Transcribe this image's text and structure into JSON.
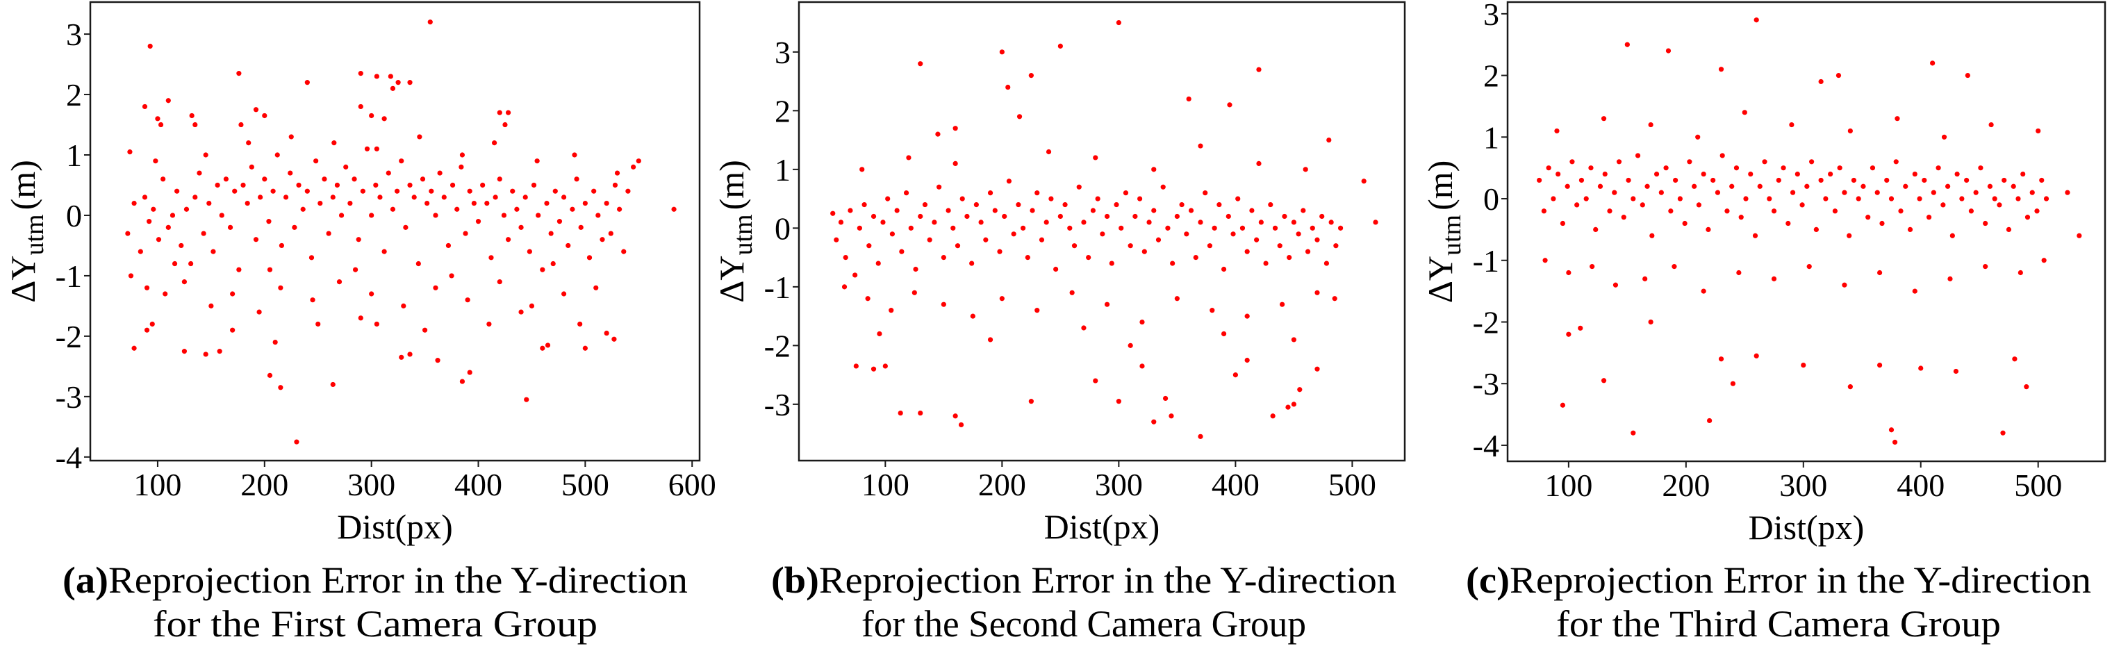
{
  "point_color": "#ff0000",
  "chart_data": [
    {
      "type": "scatter",
      "caption_tag": "(a)",
      "caption_line1": "Reprojection Error in the Y-direction",
      "caption_line2": "for the First Camera Group",
      "xlabel": "Dist(px)",
      "ylabel_main": "ΔY",
      "ylabel_sub": "utm",
      "ylabel_unit": "(m)",
      "xlim": [
        37,
        607
      ],
      "ylim": [
        -4.06,
        3.53
      ],
      "xticks": [
        100,
        200,
        300,
        400,
        500,
        600
      ],
      "yticks": [
        3,
        2,
        1,
        0,
        -1,
        -2,
        -3,
        -4
      ],
      "grid": false,
      "x": [
        72,
        78,
        84,
        88,
        92,
        96,
        101,
        105,
        110,
        114,
        118,
        122,
        127,
        131,
        135,
        139,
        143,
        148,
        152,
        156,
        160,
        164,
        168,
        172,
        176,
        180,
        184,
        188,
        192,
        196,
        200,
        204,
        208,
        212,
        216,
        220,
        224,
        228,
        232,
        236,
        240,
        244,
        248,
        252,
        256,
        260,
        264,
        268,
        272,
        276,
        280,
        284,
        288,
        292,
        296,
        300,
        304,
        308,
        312,
        316,
        320,
        324,
        328,
        332,
        336,
        340,
        344,
        348,
        352,
        356,
        360,
        364,
        368,
        372,
        376,
        380,
        384,
        388,
        392,
        396,
        400,
        404,
        408,
        412,
        416,
        420,
        424,
        428,
        432,
        436,
        440,
        444,
        448,
        452,
        456,
        460,
        464,
        468,
        472,
        476,
        480,
        484,
        488,
        492,
        496,
        500,
        504,
        508,
        512,
        516,
        520,
        524,
        528,
        532,
        536,
        540,
        545,
        75,
        90,
        107,
        125,
        150,
        170,
        195,
        215,
        245,
        270,
        300,
        330,
        360,
        390,
        420,
        450,
        480,
        510,
        98,
        145,
        185,
        225,
        265,
        305,
        345,
        385,
        415,
        455,
        490,
        530,
        116,
        205,
        285,
        375,
        470,
        550,
        93,
        176,
        240,
        290,
        305,
        318,
        325,
        336,
        355,
        88,
        110,
        100,
        103,
        132,
        135,
        178,
        192,
        200,
        290,
        300,
        312,
        320,
        420,
        428,
        425,
        74,
        583,
        78,
        90,
        95,
        125,
        145,
        158,
        205,
        215,
        230,
        264,
        328,
        336,
        362,
        385,
        392,
        445,
        460,
        465,
        500,
        520,
        527,
        495,
        170,
        210,
        250,
        290,
        305,
        350,
        410,
        440
      ],
      "y": [
        -0.3,
        0.2,
        -0.6,
        0.3,
        -0.1,
        0.1,
        -0.4,
        0.6,
        -0.2,
        0.0,
        0.4,
        -0.5,
        0.1,
        -0.8,
        0.3,
        0.7,
        -0.3,
        0.2,
        -0.6,
        0.5,
        0.0,
        0.6,
        -0.2,
        0.4,
        -0.9,
        0.5,
        0.2,
        0.8,
        -0.4,
        0.3,
        0.6,
        -0.1,
        0.4,
        1.0,
        -0.5,
        0.3,
        0.7,
        -0.2,
        0.5,
        0.1,
        0.4,
        -0.7,
        0.9,
        0.2,
        0.6,
        -0.3,
        0.3,
        0.5,
        0.0,
        0.8,
        0.2,
        0.6,
        -0.4,
        0.4,
        1.1,
        0.0,
        0.5,
        0.3,
        -0.6,
        0.7,
        0.1,
        0.4,
        0.9,
        -0.2,
        0.5,
        0.3,
        -0.8,
        0.6,
        0.2,
        0.4,
        0.0,
        0.7,
        0.3,
        -0.5,
        0.5,
        0.1,
        0.8,
        -0.3,
        0.4,
        0.2,
        -0.1,
        0.5,
        0.2,
        -0.7,
        0.3,
        0.6,
        0.0,
        -0.4,
        0.4,
        0.1,
        -0.2,
        0.3,
        -0.6,
        0.5,
        0.0,
        -0.9,
        0.2,
        -0.3,
        0.4,
        -0.1,
        0.3,
        -0.5,
        0.1,
        0.6,
        -0.2,
        0.2,
        -0.7,
        0.4,
        0.0,
        -0.4,
        0.2,
        -0.3,
        0.5,
        0.1,
        -0.6,
        0.4,
        0.8,
        -1.0,
        -1.2,
        -1.3,
        -1.1,
        -1.5,
        -1.3,
        -1.6,
        -1.2,
        -1.4,
        -1.1,
        -1.3,
        -1.5,
        -1.2,
        -1.4,
        -1.1,
        -1.5,
        -1.3,
        -1.2,
        0.9,
        1.0,
        1.2,
        1.3,
        1.2,
        1.1,
        1.3,
        1.0,
        1.2,
        0.9,
        1.0,
        0.7,
        -0.8,
        -0.9,
        -0.9,
        -1.0,
        -0.8,
        0.9,
        2.8,
        2.35,
        2.2,
        2.35,
        2.3,
        2.3,
        2.2,
        2.2,
        3.2,
        1.8,
        1.9,
        1.6,
        1.5,
        1.65,
        1.5,
        1.5,
        1.75,
        1.65,
        1.8,
        1.65,
        1.6,
        2.1,
        1.7,
        1.7,
        1.5,
        1.05,
        0.1,
        -2.2,
        -1.9,
        -1.8,
        -2.25,
        -2.3,
        -2.25,
        -2.65,
        -2.85,
        -3.75,
        -2.8,
        -2.35,
        -2.3,
        -2.4,
        -2.75,
        -2.6,
        -3.05,
        -2.2,
        -2.15,
        -2.2,
        -1.95,
        -2.05,
        -1.8,
        -1.9,
        -2.1,
        -1.8,
        -1.7,
        -1.8,
        -1.9,
        -1.8,
        -1.6
      ]
    },
    {
      "type": "scatter",
      "caption_tag": "(b)",
      "caption_line1": "Reprojection Error in the Y-direction",
      "caption_line2": "for the Second Camera Group",
      "xlabel": "Dist(px)",
      "ylabel_main": "ΔY",
      "ylabel_sub": "utm",
      "ylabel_unit": "(m)",
      "xlim": [
        26,
        545
      ],
      "ylim": [
        -3.96,
        3.85
      ],
      "xticks": [
        100,
        200,
        300,
        400,
        500
      ],
      "yticks": [
        3,
        2,
        1,
        0,
        -1,
        -2,
        -3
      ],
      "grid": false,
      "x": [
        58,
        62,
        66,
        70,
        74,
        78,
        82,
        86,
        90,
        94,
        98,
        102,
        106,
        110,
        114,
        118,
        122,
        126,
        130,
        134,
        138,
        142,
        146,
        150,
        154,
        158,
        162,
        166,
        170,
        174,
        178,
        182,
        186,
        190,
        194,
        198,
        202,
        206,
        210,
        214,
        218,
        222,
        226,
        230,
        234,
        238,
        242,
        246,
        250,
        254,
        258,
        262,
        266,
        270,
        274,
        278,
        282,
        286,
        290,
        294,
        298,
        302,
        306,
        310,
        314,
        318,
        322,
        326,
        330,
        334,
        338,
        342,
        346,
        350,
        354,
        358,
        362,
        366,
        370,
        374,
        378,
        382,
        386,
        390,
        394,
        398,
        402,
        406,
        410,
        414,
        418,
        422,
        426,
        430,
        434,
        438,
        442,
        446,
        450,
        454,
        458,
        462,
        466,
        470,
        474,
        478,
        482,
        486,
        490,
        65,
        85,
        105,
        125,
        150,
        175,
        200,
        230,
        260,
        290,
        320,
        350,
        380,
        410,
        440,
        470,
        485,
        80,
        120,
        160,
        240,
        280,
        330,
        370,
        420,
        460,
        95,
        190,
        270,
        310,
        390,
        450,
        130,
        200,
        250,
        300,
        225,
        205,
        215,
        420,
        360,
        395,
        113,
        130,
        160,
        165,
        225,
        280,
        300,
        320,
        330,
        340,
        345,
        370,
        400,
        410,
        432,
        445,
        450,
        455,
        470,
        75,
        90,
        100,
        520,
        510,
        55,
        145,
        160,
        480
      ],
      "y": [
        -0.2,
        0.1,
        -0.5,
        0.3,
        -0.8,
        0.0,
        0.4,
        -0.3,
        0.2,
        -0.6,
        0.1,
        0.5,
        -0.1,
        0.3,
        -0.4,
        0.6,
        0.0,
        -0.7,
        0.2,
        0.4,
        -0.2,
        0.1,
        0.7,
        -0.5,
        0.3,
        0.0,
        -0.3,
        0.5,
        0.2,
        -0.6,
        0.4,
        0.1,
        -0.2,
        0.6,
        0.3,
        -0.4,
        0.2,
        0.8,
        -0.1,
        0.4,
        0.0,
        -0.5,
        0.3,
        0.6,
        -0.2,
        0.1,
        0.5,
        -0.7,
        0.2,
        0.4,
        0.0,
        -0.3,
        0.7,
        0.1,
        -0.5,
        0.3,
        0.5,
        -0.1,
        0.2,
        -0.6,
        0.4,
        0.0,
        0.6,
        -0.3,
        0.2,
        0.5,
        -0.4,
        0.1,
        0.3,
        -0.2,
        0.7,
        0.0,
        -0.6,
        0.2,
        0.4,
        -0.1,
        0.3,
        -0.5,
        0.1,
        0.6,
        -0.3,
        0.0,
        0.4,
        -0.7,
        0.2,
        -0.1,
        0.5,
        0.0,
        -0.4,
        0.3,
        -0.2,
        0.1,
        -0.6,
        0.4,
        0.0,
        -0.3,
        0.2,
        -0.5,
        0.1,
        -0.1,
        0.3,
        -0.4,
        0.0,
        -0.2,
        0.2,
        -0.6,
        0.1,
        -0.3,
        0.0,
        -1.0,
        -1.2,
        -1.4,
        -1.1,
        -1.3,
        -1.5,
        -1.2,
        -1.4,
        -1.1,
        -1.3,
        -1.6,
        -1.2,
        -1.4,
        -1.5,
        -1.3,
        -1.1,
        -1.2,
        1.0,
        1.2,
        1.1,
        1.3,
        1.2,
        1.0,
        1.4,
        1.1,
        1.0,
        -1.8,
        -1.9,
        -1.7,
        -2.0,
        -1.8,
        -1.9,
        2.8,
        3.0,
        3.1,
        3.5,
        2.6,
        2.4,
        1.9,
        2.7,
        2.2,
        2.1,
        -3.15,
        -3.15,
        -3.2,
        -3.35,
        -2.95,
        -2.6,
        -2.95,
        -2.35,
        -3.3,
        -2.9,
        -3.2,
        -3.55,
        -2.5,
        -2.25,
        -3.2,
        -3.05,
        -3.0,
        -2.75,
        -2.4,
        -2.35,
        -2.4,
        -2.35,
        0.1,
        0.8,
        0.25,
        1.6,
        1.7,
        1.5
      ]
    },
    {
      "type": "scatter",
      "caption_tag": "(c)",
      "caption_line1": "Reprojection Error in the Y-direction",
      "caption_line2": "for the Third Camera Group",
      "xlabel": "Dist(px)",
      "ylabel_main": "ΔY",
      "ylabel_sub": "utm",
      "ylabel_unit": "(m)",
      "xlim": [
        48,
        557
      ],
      "ylim": [
        -4.26,
        3.19
      ],
      "xticks": [
        100,
        200,
        300,
        400,
        500
      ],
      "yticks": [
        3,
        2,
        1,
        0,
        -1,
        -2,
        -3,
        -4
      ],
      "grid": false,
      "x": [
        75,
        79,
        83,
        87,
        91,
        95,
        99,
        103,
        107,
        111,
        115,
        119,
        123,
        127,
        131,
        135,
        139,
        143,
        147,
        151,
        155,
        159,
        163,
        167,
        171,
        175,
        179,
        183,
        187,
        191,
        195,
        199,
        203,
        207,
        211,
        215,
        219,
        223,
        227,
        231,
        235,
        239,
        243,
        247,
        251,
        255,
        259,
        263,
        267,
        271,
        275,
        279,
        283,
        287,
        291,
        295,
        299,
        303,
        307,
        311,
        315,
        319,
        323,
        327,
        331,
        335,
        339,
        343,
        347,
        351,
        355,
        359,
        363,
        367,
        371,
        375,
        379,
        383,
        387,
        391,
        395,
        399,
        403,
        407,
        411,
        415,
        419,
        423,
        427,
        431,
        435,
        439,
        443,
        447,
        451,
        455,
        459,
        463,
        467,
        471,
        475,
        479,
        483,
        487,
        491,
        495,
        499,
        503,
        507,
        80,
        100,
        120,
        140,
        165,
        190,
        215,
        245,
        275,
        305,
        335,
        365,
        395,
        425,
        455,
        485,
        505,
        90,
        130,
        170,
        210,
        250,
        290,
        340,
        380,
        420,
        460,
        500,
        260,
        150,
        185,
        95,
        155,
        220,
        230,
        300,
        240,
        375,
        378,
        470,
        490,
        430,
        340,
        130,
        110,
        170,
        230,
        330,
        410,
        440,
        315,
        535,
        525,
        260,
        400,
        365,
        480,
        100
      ],
      "y": [
        0.3,
        -0.2,
        0.5,
        0.0,
        0.4,
        -0.4,
        0.2,
        0.6,
        -0.1,
        0.3,
        0.0,
        0.5,
        -0.5,
        0.2,
        0.4,
        -0.2,
        0.1,
        0.6,
        -0.3,
        0.3,
        0.0,
        0.7,
        -0.1,
        0.2,
        -0.6,
        0.4,
        0.1,
        0.5,
        -0.2,
        0.3,
        0.0,
        -0.4,
        0.6,
        0.2,
        -0.1,
        0.4,
        -0.5,
        0.3,
        0.1,
        0.7,
        -0.2,
        0.2,
        0.5,
        -0.3,
        0.0,
        0.4,
        -0.6,
        0.2,
        0.6,
        0.0,
        -0.2,
        0.3,
        0.5,
        -0.4,
        0.1,
        0.4,
        -0.1,
        0.2,
        0.6,
        -0.5,
        0.3,
        0.0,
        0.4,
        -0.2,
        0.5,
        0.1,
        -0.6,
        0.3,
        0.0,
        0.2,
        -0.3,
        0.5,
        0.1,
        -0.4,
        0.3,
        0.0,
        0.6,
        -0.2,
        0.2,
        -0.5,
        0.4,
        0.0,
        0.3,
        -0.3,
        0.1,
        0.5,
        -0.1,
        0.2,
        -0.6,
        0.4,
        0.0,
        0.3,
        -0.2,
        0.1,
        0.5,
        -0.4,
        0.2,
        0.0,
        -0.1,
        0.3,
        -0.5,
        0.2,
        0.0,
        0.4,
        -0.3,
        0.1,
        -0.2,
        0.3,
        0.0,
        -1.0,
        -1.2,
        -1.1,
        -1.4,
        -1.3,
        -1.1,
        -1.5,
        -1.2,
        -1.3,
        -1.1,
        -1.4,
        -1.2,
        -1.5,
        -1.3,
        -1.1,
        -1.2,
        -1.0,
        1.1,
        1.3,
        1.2,
        1.0,
        1.4,
        1.2,
        1.1,
        1.3,
        1.0,
        1.2,
        1.1,
        2.9,
        2.5,
        2.4,
        -3.35,
        -3.8,
        -3.6,
        -2.6,
        -2.7,
        -3.0,
        -3.75,
        -3.95,
        -3.8,
        -3.05,
        -2.8,
        -3.05,
        -2.95,
        -2.1,
        -2.0,
        2.1,
        2.0,
        2.2,
        2.0,
        1.9,
        -0.6,
        0.1,
        -2.55,
        -2.75,
        -2.7,
        -2.6,
        -2.2
      ]
    }
  ]
}
